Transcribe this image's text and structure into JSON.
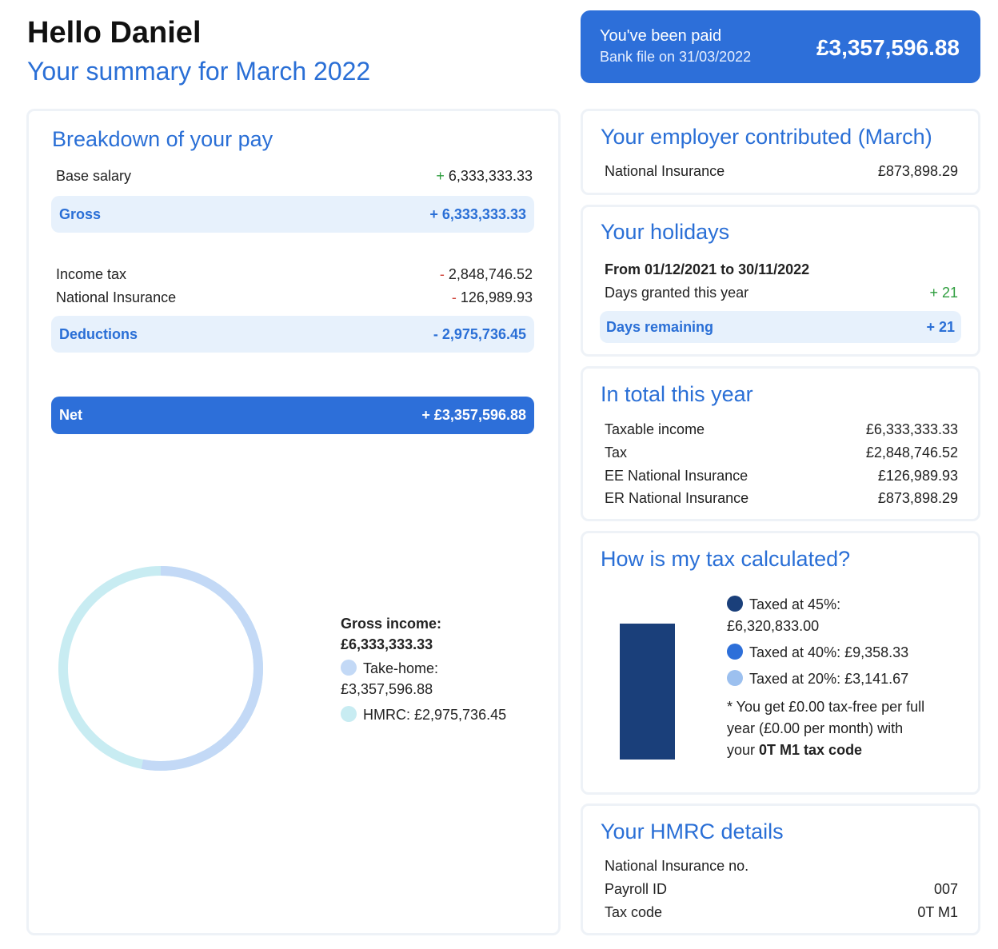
{
  "header": {
    "greeting": "Hello Daniel",
    "subtitle": "Your summary for March 2022"
  },
  "paid": {
    "title": "You've been paid",
    "subtitle": "Bank file on 31/03/2022",
    "amount": "£3,357,596.88"
  },
  "breakdown": {
    "title": "Breakdown of your pay",
    "base_salary_label": "Base salary",
    "base_salary_sign": "+",
    "base_salary_value": "6,333,333.33",
    "gross_label": "Gross",
    "gross_value": "+ 6,333,333.33",
    "income_tax_label": "Income tax",
    "income_tax_sign": "-",
    "income_tax_value": "2,848,746.52",
    "ni_label": "National Insurance",
    "ni_sign": "-",
    "ni_value": "126,989.93",
    "deductions_label": "Deductions",
    "deductions_value": "- 2,975,736.45",
    "net_label": "Net",
    "net_value": "+ £3,357,596.88"
  },
  "donut": {
    "gross_income_label": "Gross income:",
    "gross_income_value": "£6,333,333.33",
    "take_home_label": "Take-home:",
    "take_home_value": "£3,357,596.88",
    "hmrc_label": "HMRC: £2,975,736.45",
    "take_home_fraction": 0.5301,
    "take_home_color": "#c3d9f6",
    "hmrc_color": "#c8ecf2"
  },
  "employer": {
    "title": "Your employer contributed (March)",
    "ni_label": "National Insurance",
    "ni_value": "£873,898.29"
  },
  "holidays": {
    "title": "Your holidays",
    "period": "From 01/12/2021 to 30/11/2022",
    "granted_label": "Days granted this year",
    "granted_value": "+ 21",
    "remaining_label": "Days remaining",
    "remaining_value": "+ 21"
  },
  "total": {
    "title": "In total this year",
    "rows": [
      {
        "label": "Taxable income",
        "value": "£6,333,333.33"
      },
      {
        "label": "Tax",
        "value": "£2,848,746.52"
      },
      {
        "label": "EE National Insurance",
        "value": "£126,989.93"
      },
      {
        "label": "ER National Insurance",
        "value": "£873,898.29"
      }
    ]
  },
  "tax_calc": {
    "title": "How is my tax calculated?",
    "band45_label": "Taxed at 45%:",
    "band45_value": "£6,320,833.00",
    "band40": "Taxed at 40%: £9,358.33",
    "band20": "Taxed at 20%: £3,141.67",
    "note_line1": "* You get £0.00 tax-free per full",
    "note_line2": "year (£0.00 per month) with",
    "note_line3_prefix": "your ",
    "note_line3_bold": "0T M1 tax code",
    "colors": {
      "band45": "#1a3f7a",
      "band40": "#2d6fd9",
      "band20": "#9cc0ef"
    }
  },
  "hmrc": {
    "title": "Your HMRC details",
    "ni_no_label": "National Insurance no.",
    "ni_no_value": "",
    "payroll_label": "Payroll ID",
    "payroll_value": "007",
    "taxcode_label": "Tax code",
    "taxcode_value": "0T M1"
  }
}
